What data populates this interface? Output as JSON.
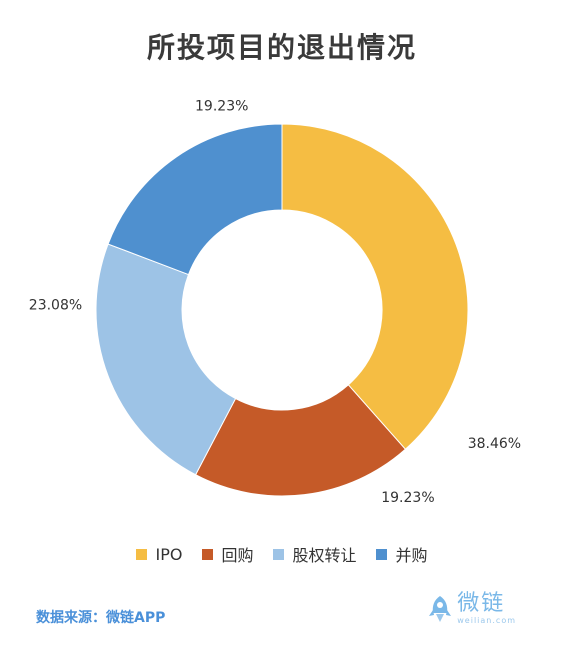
{
  "title": "所投项目的退出情况",
  "chart_data": {
    "type": "pie",
    "donut": true,
    "title": "所投项目的退出情况",
    "categories": [
      "IPO",
      "回购",
      "股权转让",
      "并购"
    ],
    "values": [
      38.46,
      19.23,
      23.08,
      19.23
    ],
    "value_labels": [
      "38.46%",
      "19.23%",
      "23.08%",
      "19.23%"
    ],
    "colors": [
      "#F5BD43",
      "#C55A28",
      "#9DC3E6",
      "#4F90CF"
    ],
    "legend_position": "bottom"
  },
  "legend": [
    {
      "label": "IPO",
      "color": "#F5BD43"
    },
    {
      "label": "回购",
      "color": "#C55A28"
    },
    {
      "label": "股权转让",
      "color": "#9DC3E6"
    },
    {
      "label": "并购",
      "color": "#4F90CF"
    }
  ],
  "footer": {
    "source": "数据来源：微链APP",
    "logo_name": "微链",
    "logo_domain": "weilian.com",
    "logo_icon": "rocket-icon"
  }
}
